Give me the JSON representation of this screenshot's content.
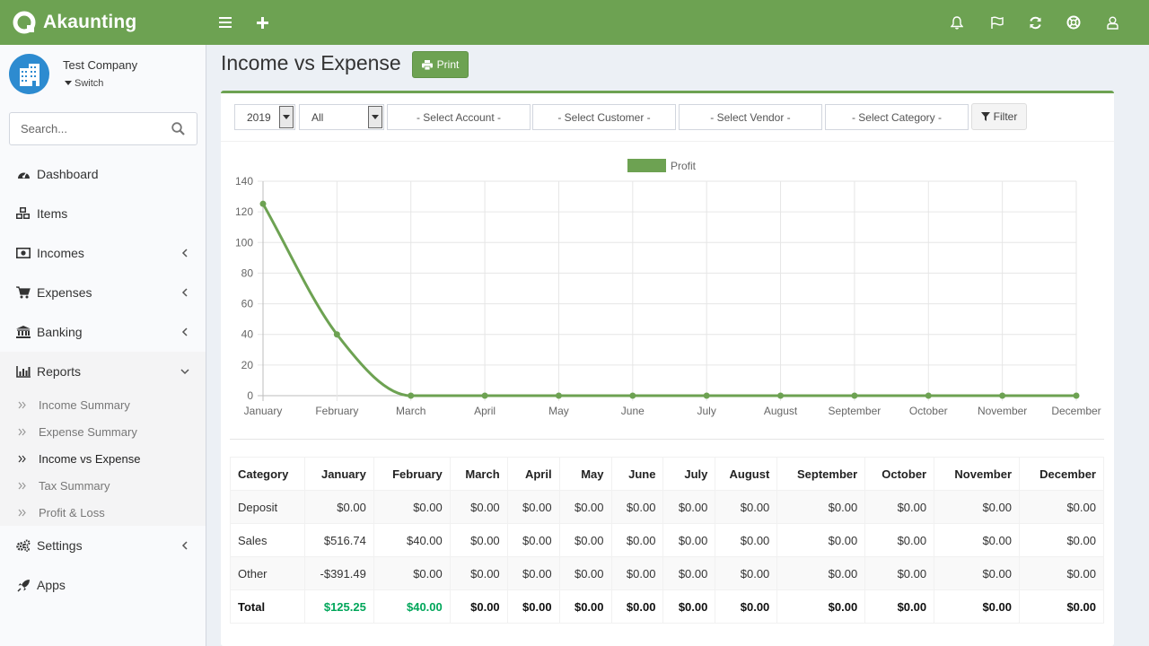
{
  "app": {
    "name": "Akaunting"
  },
  "company": {
    "name": "Test Company",
    "switch_label": "Switch"
  },
  "search": {
    "placeholder": "Search..."
  },
  "sidebar": {
    "items": [
      {
        "label": "Dashboard",
        "icon": "dashboard-icon"
      },
      {
        "label": "Items",
        "icon": "cubes-icon"
      },
      {
        "label": "Incomes",
        "icon": "money-icon"
      },
      {
        "label": "Expenses",
        "icon": "cart-icon"
      },
      {
        "label": "Banking",
        "icon": "bank-icon"
      },
      {
        "label": "Reports",
        "icon": "bar-chart-icon"
      },
      {
        "label": "Settings",
        "icon": "gears-icon"
      },
      {
        "label": "Apps",
        "icon": "rocket-icon"
      }
    ],
    "reports_submenu": [
      {
        "label": "Income Summary"
      },
      {
        "label": "Expense Summary"
      },
      {
        "label": "Income vs Expense"
      },
      {
        "label": "Tax Summary"
      },
      {
        "label": "Profit & Loss"
      }
    ]
  },
  "page": {
    "title": "Income vs Expense",
    "print_label": "Print"
  },
  "filters": {
    "year": "2019",
    "status": "All",
    "account_placeholder": "- Select Account -",
    "customer_placeholder": "- Select Customer -",
    "vendor_placeholder": "- Select Vendor -",
    "category_placeholder": "- Select Category -",
    "filter_label": "Filter"
  },
  "colors": {
    "accent": "#6da252",
    "positive": "#00a65a"
  },
  "chart_data": {
    "type": "line",
    "title": "",
    "xlabel": "",
    "ylabel": "",
    "legend": "top-center",
    "categories": [
      "January",
      "February",
      "March",
      "April",
      "May",
      "June",
      "July",
      "August",
      "September",
      "October",
      "November",
      "December"
    ],
    "series": [
      {
        "name": "Profit",
        "color": "#6da252",
        "values": [
          125.25,
          40,
          0,
          0,
          0,
          0,
          0,
          0,
          0,
          0,
          0,
          0
        ]
      }
    ],
    "ylim": [
      0,
      140
    ],
    "yticks": [
      0,
      20,
      40,
      60,
      80,
      100,
      120,
      140
    ],
    "grid": true
  },
  "table": {
    "headers": [
      "Category",
      "January",
      "February",
      "March",
      "April",
      "May",
      "June",
      "July",
      "August",
      "September",
      "October",
      "November",
      "December"
    ],
    "rows": [
      [
        "Deposit",
        "$0.00",
        "$0.00",
        "$0.00",
        "$0.00",
        "$0.00",
        "$0.00",
        "$0.00",
        "$0.00",
        "$0.00",
        "$0.00",
        "$0.00",
        "$0.00"
      ],
      [
        "Sales",
        "$516.74",
        "$40.00",
        "$0.00",
        "$0.00",
        "$0.00",
        "$0.00",
        "$0.00",
        "$0.00",
        "$0.00",
        "$0.00",
        "$0.00",
        "$0.00"
      ],
      [
        "Other",
        "-$391.49",
        "$0.00",
        "$0.00",
        "$0.00",
        "$0.00",
        "$0.00",
        "$0.00",
        "$0.00",
        "$0.00",
        "$0.00",
        "$0.00",
        "$0.00"
      ]
    ],
    "total": [
      "Total",
      "$125.25",
      "$40.00",
      "$0.00",
      "$0.00",
      "$0.00",
      "$0.00",
      "$0.00",
      "$0.00",
      "$0.00",
      "$0.00",
      "$0.00",
      "$0.00"
    ]
  }
}
